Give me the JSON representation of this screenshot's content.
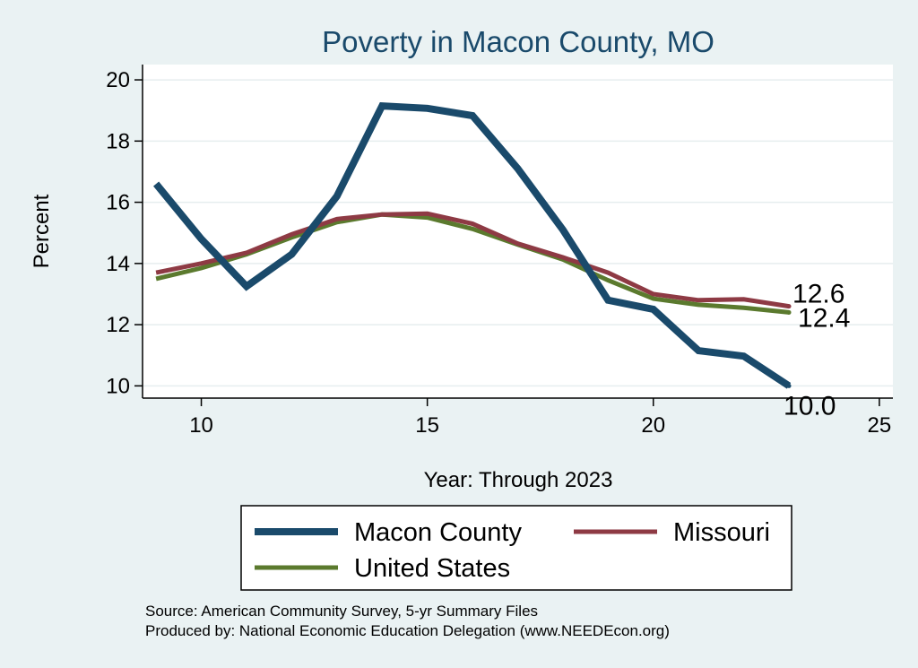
{
  "chart_data": {
    "type": "line",
    "title": "Poverty in Macon County, MO",
    "xlabel": "Year: Through 2023",
    "ylabel": "Percent",
    "xlim": [
      8.7,
      25.3
    ],
    "ylim": [
      9.6,
      20.5
    ],
    "xticks": [
      10,
      15,
      20,
      25
    ],
    "yticks": [
      10,
      12,
      14,
      16,
      18,
      20
    ],
    "grid": true,
    "legend_position": "bottom",
    "series": [
      {
        "name": "Macon County",
        "color": "#1a4a6b",
        "x": [
          9,
          10,
          11,
          12,
          13,
          14,
          15,
          16,
          17,
          18,
          19,
          20,
          21,
          22,
          23
        ],
        "values": [
          16.6,
          14.8,
          13.25,
          14.3,
          16.2,
          19.15,
          19.07,
          18.83,
          17.1,
          15.1,
          12.8,
          12.5,
          11.15,
          10.97,
          10.0
        ]
      },
      {
        "name": "Missouri",
        "color": "#8e3a44",
        "x": [
          9,
          10,
          11,
          12,
          13,
          14,
          15,
          16,
          17,
          18,
          19,
          20,
          21,
          22,
          23
        ],
        "values": [
          13.7,
          14.0,
          14.35,
          14.95,
          15.45,
          15.6,
          15.63,
          15.3,
          14.65,
          14.2,
          13.7,
          13.0,
          12.8,
          12.83,
          12.6
        ]
      },
      {
        "name": "United States",
        "color": "#5b7a2e",
        "x": [
          9,
          10,
          11,
          12,
          13,
          14,
          15,
          16,
          17,
          18,
          19,
          20,
          21,
          22,
          23
        ],
        "values": [
          13.5,
          13.85,
          14.3,
          14.85,
          15.35,
          15.6,
          15.5,
          15.13,
          14.62,
          14.13,
          13.45,
          12.85,
          12.65,
          12.55,
          12.4
        ]
      }
    ],
    "end_labels": [
      {
        "series": "Missouri",
        "text": "12.6"
      },
      {
        "series": "United States",
        "text": "12.4"
      },
      {
        "series": "Macon County",
        "text": "10.0"
      }
    ],
    "source_lines": [
      "Source: American Community Survey, 5-yr Summary Files",
      "Produced by: National Economic Education Delegation (www.NEEDEcon.org)"
    ]
  }
}
